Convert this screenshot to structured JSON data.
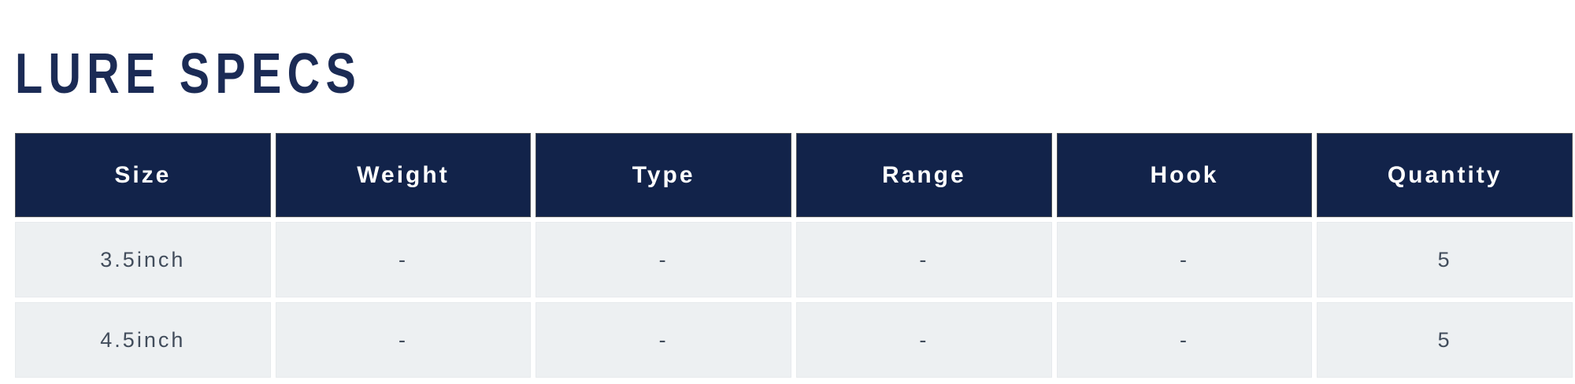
{
  "page_title": "LURE SPECS",
  "table": {
    "columns": [
      "Size",
      "Weight",
      "Type",
      "Range",
      "Hook",
      "Quantity"
    ],
    "rows": [
      [
        "3.5inch",
        "-",
        "-",
        "-",
        "-",
        "5"
      ],
      [
        "4.5inch",
        "-",
        "-",
        "-",
        "-",
        "5"
      ]
    ]
  },
  "colors": {
    "title_text": "#1b2b55",
    "header_bg": "#12234a",
    "header_text": "#ffffff",
    "row_bg": "#edf0f2",
    "row_text": "#424d5c",
    "page_bg": "#ffffff"
  }
}
